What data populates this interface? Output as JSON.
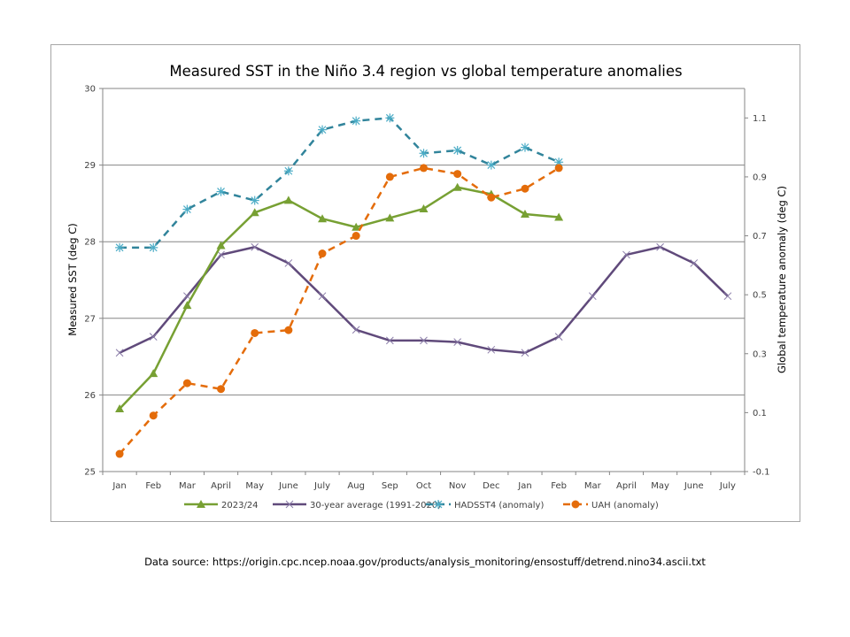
{
  "chart_data": {
    "type": "line",
    "title": "Measured SST in the Niño 3.4 region vs global temperature anomalies",
    "xlabel": "",
    "ylabel": "Measured SST (deg C)",
    "y2label": "Global temperature anomaly (deg C)",
    "ylim": [
      25,
      30
    ],
    "y2lim": [
      -0.1,
      1.2
    ],
    "yticks": [
      25,
      26,
      27,
      28,
      29,
      30
    ],
    "y2ticks": [
      -0.1,
      0.1,
      0.3,
      0.5,
      0.7,
      0.9,
      1.1
    ],
    "grid": true,
    "legend": "bottom",
    "categories": [
      "Jan",
      "Feb",
      "Mar",
      "April",
      "May",
      "June",
      "July",
      "Aug",
      "Sep",
      "Oct",
      "Nov",
      "Dec",
      "Jan",
      "Feb",
      "Mar",
      "April",
      "May",
      "June",
      "July"
    ],
    "series": [
      {
        "name": "2023/24",
        "axis": "left",
        "color": "#77a033",
        "marker": "triangle",
        "dash": false,
        "values": [
          25.82,
          26.28,
          27.17,
          27.95,
          28.38,
          28.54,
          28.3,
          28.19,
          28.31,
          28.43,
          28.71,
          28.62,
          28.36,
          28.32,
          null,
          null,
          null,
          null,
          null
        ]
      },
      {
        "name": "30-year average (1991-2020)",
        "axis": "left",
        "color": "#604a7b",
        "marker": "x",
        "dash": false,
        "values": [
          26.55,
          26.76,
          27.29,
          27.83,
          27.93,
          27.72,
          27.29,
          26.85,
          26.71,
          26.71,
          26.69,
          26.59,
          26.55,
          26.76,
          27.29,
          27.83,
          27.93,
          27.72,
          27.29
        ]
      },
      {
        "name": "HADSST4 (anomaly)",
        "axis": "right",
        "color": "#31849b",
        "marker": "asterisk",
        "dash": true,
        "values": [
          0.66,
          0.66,
          0.79,
          0.85,
          0.82,
          0.92,
          1.06,
          1.09,
          1.1,
          0.98,
          0.99,
          0.94,
          1.0,
          0.95,
          null,
          null,
          null,
          null,
          null
        ]
      },
      {
        "name": "UAH (anomaly)",
        "axis": "right",
        "color": "#e46c0a",
        "marker": "circle",
        "dash": true,
        "values": [
          -0.04,
          0.09,
          0.2,
          0.18,
          0.37,
          0.38,
          0.64,
          0.7,
          0.9,
          0.93,
          0.91,
          0.83,
          0.86,
          0.93,
          null,
          null,
          null,
          null,
          null
        ]
      }
    ]
  },
  "footer": {
    "source": "Data source: https://origin.cpc.ncep.noaa.gov/products/analysis_monitoring/ensostuff/detrend.nino34.ascii.txt"
  }
}
